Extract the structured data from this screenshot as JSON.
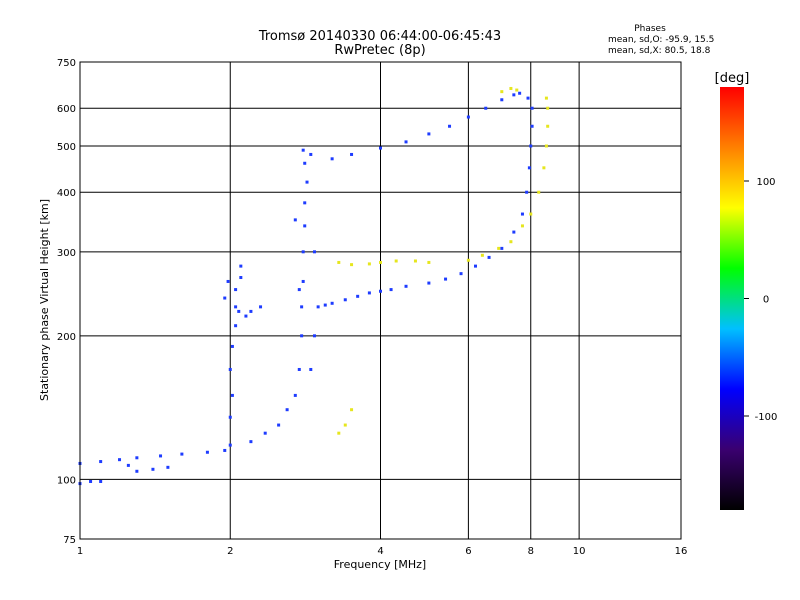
{
  "chart_data": {
    "type": "scatter",
    "title": "Tromsø 20140330 06:44:00-06:45:43",
    "subtitle": "RwPretec (8p)",
    "xlabel": "Frequency [MHz]",
    "ylabel": "Stationary phase Virtual Height [km]",
    "x_scale": "log",
    "y_scale": "log",
    "xlim": [
      1,
      16
    ],
    "ylim": [
      75,
      750
    ],
    "x_ticks": [
      1,
      2,
      4,
      6,
      8,
      10,
      16
    ],
    "y_ticks": [
      75,
      100,
      200,
      300,
      400,
      500,
      600,
      750
    ],
    "grid": true,
    "phases_summary": {
      "title": "Phases",
      "lines": [
        "mean, sd,O: -95.9, 15.5",
        "mean, sd,X: 80.5, 18.8"
      ]
    },
    "colorbar": {
      "label": "[deg]",
      "range": [
        -180,
        180
      ],
      "ticks": [
        100,
        0,
        -100
      ],
      "tick_labels": [
        "100",
        "0",
        "-100"
      ],
      "colors": [
        "#000000",
        "#3a0070",
        "#0000ff",
        "#00c0ff",
        "#00ff00",
        "#ffff00",
        "#ff8000",
        "#ff0000"
      ]
    },
    "series": [
      {
        "values": [
          [
            1.0,
            98
          ],
          [
            1.05,
            99
          ],
          [
            1.1,
            99
          ],
          [
            1.0,
            108
          ],
          [
            1.1,
            109
          ],
          [
            1.2,
            110
          ],
          [
            1.3,
            111
          ],
          [
            1.45,
            112
          ],
          [
            1.6,
            113
          ],
          [
            1.8,
            114
          ],
          [
            1.95,
            115
          ],
          [
            1.3,
            104
          ],
          [
            1.4,
            105
          ],
          [
            1.5,
            106
          ],
          [
            1.25,
            107
          ],
          [
            2.0,
            118
          ],
          [
            2.0,
            135
          ],
          [
            2.02,
            150
          ],
          [
            2.0,
            170
          ],
          [
            2.02,
            190
          ],
          [
            2.05,
            210
          ],
          [
            2.05,
            230
          ],
          [
            2.05,
            250
          ],
          [
            2.1,
            265
          ],
          [
            2.1,
            280
          ],
          [
            1.95,
            240
          ],
          [
            1.98,
            260
          ],
          [
            2.08,
            225
          ],
          [
            2.15,
            220
          ],
          [
            2.2,
            225
          ],
          [
            2.3,
            230
          ],
          [
            2.2,
            120
          ],
          [
            2.35,
            125
          ],
          [
            2.5,
            130
          ],
          [
            2.6,
            140
          ],
          [
            2.7,
            150
          ],
          [
            2.75,
            170
          ],
          [
            2.78,
            200
          ],
          [
            2.78,
            230
          ],
          [
            2.8,
            260
          ],
          [
            2.8,
            300
          ],
          [
            2.82,
            340
          ],
          [
            2.82,
            380
          ],
          [
            2.85,
            420
          ],
          [
            2.82,
            460
          ],
          [
            2.8,
            490
          ],
          [
            2.9,
            480
          ],
          [
            2.95,
            300
          ],
          [
            2.95,
            200
          ],
          [
            2.7,
            350
          ],
          [
            2.75,
            250
          ],
          [
            2.9,
            170
          ],
          [
            3.0,
            230
          ],
          [
            3.1,
            232
          ],
          [
            3.2,
            234
          ],
          [
            3.4,
            238
          ],
          [
            3.6,
            242
          ],
          [
            3.8,
            246
          ],
          [
            4.0,
            248
          ],
          [
            4.2,
            250
          ],
          [
            4.5,
            254
          ],
          [
            5.0,
            258
          ],
          [
            5.4,
            263
          ],
          [
            5.8,
            270
          ],
          [
            6.2,
            280
          ],
          [
            6.6,
            292
          ],
          [
            7.0,
            305
          ],
          [
            7.4,
            330
          ],
          [
            7.7,
            360
          ],
          [
            7.85,
            400
          ],
          [
            7.95,
            450
          ],
          [
            8.0,
            500
          ],
          [
            8.05,
            550
          ],
          [
            8.05,
            600
          ],
          [
            7.9,
            630
          ],
          [
            3.2,
            470
          ],
          [
            3.5,
            480
          ],
          [
            4.0,
            495
          ],
          [
            4.5,
            510
          ],
          [
            5.0,
            530
          ],
          [
            5.5,
            550
          ],
          [
            6.0,
            575
          ],
          [
            6.5,
            600
          ],
          [
            7.0,
            625
          ],
          [
            7.4,
            640
          ],
          [
            7.6,
            645
          ]
        ]
      },
      {
        "values": [
          [
            3.3,
            285
          ],
          [
            3.5,
            282
          ],
          [
            3.8,
            283
          ],
          [
            4.0,
            285
          ],
          [
            4.3,
            287
          ],
          [
            4.7,
            287
          ],
          [
            5.0,
            285
          ],
          [
            6.0,
            288
          ],
          [
            6.4,
            295
          ],
          [
            6.9,
            305
          ],
          [
            7.3,
            315
          ],
          [
            7.7,
            340
          ],
          [
            8.0,
            360
          ],
          [
            8.3,
            400
          ],
          [
            8.5,
            450
          ],
          [
            8.6,
            500
          ],
          [
            8.65,
            550
          ],
          [
            8.65,
            600
          ],
          [
            8.6,
            630
          ],
          [
            7.0,
            650
          ],
          [
            7.3,
            660
          ],
          [
            7.5,
            655
          ],
          [
            3.3,
            125
          ],
          [
            3.4,
            130
          ],
          [
            3.5,
            140
          ]
        ]
      }
    ]
  }
}
